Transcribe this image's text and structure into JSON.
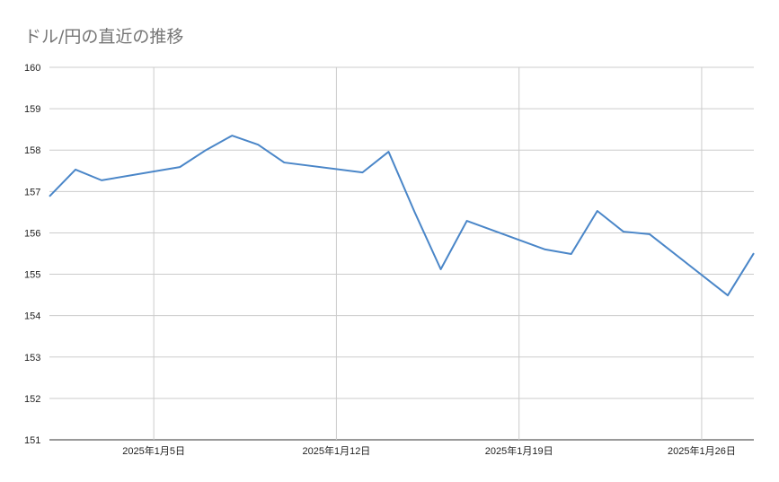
{
  "chart_data": {
    "type": "line",
    "title": "ドル/円の直近の推移",
    "xlabel": "",
    "ylabel": "",
    "ylim": [
      151,
      160
    ],
    "xlim": [
      "2025-01-01",
      "2025-01-28"
    ],
    "y_ticks": [
      "151",
      "152",
      "153",
      "154",
      "155",
      "156",
      "157",
      "158",
      "159",
      "160"
    ],
    "x_ticks": [
      {
        "date": "2025-01-05",
        "label": "2025年1月5日"
      },
      {
        "date": "2025-01-12",
        "label": "2025年1月12日"
      },
      {
        "date": "2025-01-19",
        "label": "2025年1月19日"
      },
      {
        "date": "2025-01-26",
        "label": "2025年1月26日"
      }
    ],
    "grid": true,
    "legend": "none",
    "color": "#4a86c8",
    "x": [
      "2025-01-01",
      "2025-01-02",
      "2025-01-03",
      "2025-01-06",
      "2025-01-07",
      "2025-01-08",
      "2025-01-09",
      "2025-01-10",
      "2025-01-13",
      "2025-01-14",
      "2025-01-15",
      "2025-01-16",
      "2025-01-17",
      "2025-01-20",
      "2025-01-21",
      "2025-01-22",
      "2025-01-23",
      "2025-01-24",
      "2025-01-27",
      "2025-01-28"
    ],
    "values": [
      156.88,
      157.53,
      157.27,
      157.59,
      158.0,
      158.35,
      158.13,
      157.7,
      157.46,
      157.96,
      156.5,
      155.12,
      156.29,
      155.6,
      155.49,
      156.53,
      156.03,
      155.97,
      154.49,
      155.51
    ]
  }
}
